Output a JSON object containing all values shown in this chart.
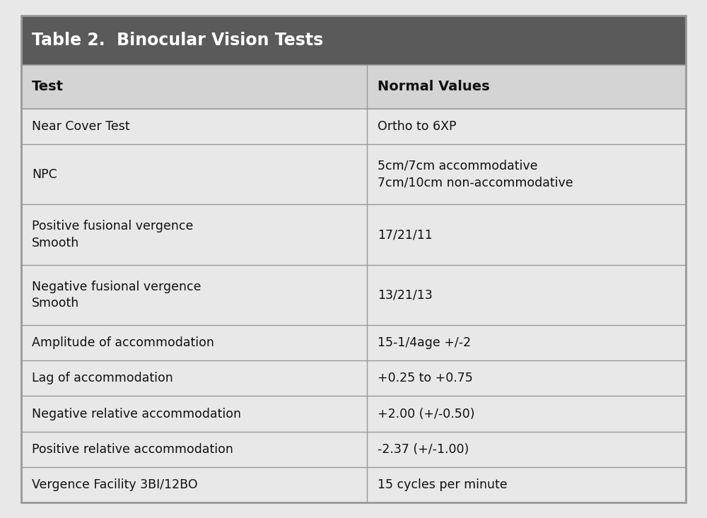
{
  "title": "Table 2.  Binocular Vision Tests",
  "title_bg_color": "#5a5a5a",
  "title_text_color": "#ffffff",
  "header_bg_color": "#d4d4d4",
  "row_bg_color": "#e8e8e8",
  "border_color": "#999999",
  "col_header_1": "Test",
  "col_header_2": "Normal Values",
  "rows": [
    [
      "Near Cover Test",
      "Ortho to 6XP"
    ],
    [
      "NPC",
      "5cm/7cm accommodative\n7cm/10cm non-accommodative"
    ],
    [
      "Positive fusional vergence\nSmooth",
      "17/21/11"
    ],
    [
      "Negative fusional vergence\nSmooth",
      "13/21/13"
    ],
    [
      "Amplitude of accommodation",
      "15-1/4age +/-2"
    ],
    [
      "Lag of accommodation",
      "+0.25 to +0.75"
    ],
    [
      "Negative relative accommodation",
      "+2.00 (+/-0.50)"
    ],
    [
      "Positive relative accommodation",
      "-2.37 (+/-1.00)"
    ],
    [
      "Vergence Facility 3BI/12BO",
      "15 cycles per minute"
    ]
  ],
  "col_split": 0.52,
  "figsize": [
    10.0,
    7.33
  ],
  "dpi": 100
}
